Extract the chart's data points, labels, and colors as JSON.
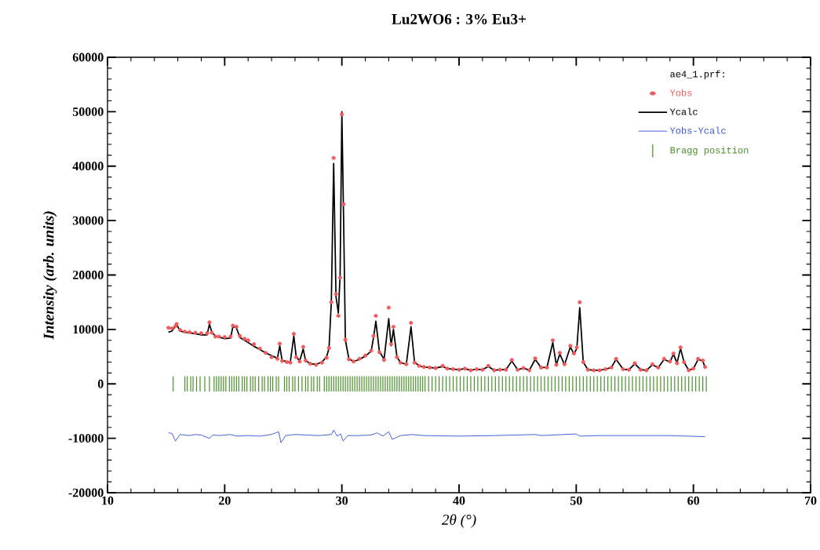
{
  "chart_data": {
    "type": "line",
    "title": "Lu2WO6 : 3% Eu3+",
    "xlabel": "2θ (°)",
    "ylabel": "Intensity (arb. units)",
    "legend_title": "ae4_1.prf:",
    "legend": "top right",
    "xlim": [
      10,
      70
    ],
    "ylim": [
      -20000,
      60000
    ],
    "xticks": [
      10,
      20,
      30,
      40,
      50,
      60,
      70
    ],
    "yticks": [
      -20000,
      -10000,
      0,
      10000,
      20000,
      30000,
      40000,
      50000,
      60000
    ],
    "x": [
      15.2,
      15.5,
      15.8,
      15.9,
      16.2,
      16.6,
      17,
      17.5,
      18,
      18.5,
      18.7,
      18.9,
      19.2,
      19.5,
      20,
      20.5,
      20.7,
      21,
      21.3,
      21.7,
      22,
      22.5,
      23,
      23.5,
      24,
      24.5,
      24.7,
      24.9,
      25.3,
      25.6,
      25.9,
      26.1,
      26.4,
      26.7,
      26.9,
      27.3,
      27.8,
      28.3,
      28.7,
      28.9,
      29.1,
      29.3,
      29.5,
      29.7,
      29.85,
      30,
      30.15,
      30.3,
      30.6,
      31,
      31.5,
      32,
      32.5,
      32.7,
      32.9,
      33.2,
      33.6,
      34,
      34.2,
      34.4,
      34.7,
      35,
      35.5,
      35.9,
      36.2,
      36.6,
      37,
      37.5,
      38,
      38.6,
      39,
      39.5,
      40,
      40.5,
      41,
      41.5,
      42,
      42.5,
      43,
      43.5,
      44,
      44.5,
      45,
      45.5,
      46,
      46.5,
      47,
      47.5,
      48,
      48.3,
      48.6,
      49,
      49.5,
      49.8,
      50.05,
      50.3,
      50.6,
      51,
      51.5,
      52,
      52.5,
      53,
      53.4,
      54,
      54.5,
      55,
      55.5,
      56,
      56.5,
      57,
      57.5,
      58,
      58.3,
      58.6,
      58.9,
      59.2,
      59.6,
      60,
      60.4,
      60.8,
      61
    ],
    "series": [
      {
        "name": "Yobs",
        "type": "scatter",
        "marker": "circle",
        "color": "#f05a5a",
        "values": [
          10300,
          10200,
          10600,
          11000,
          9900,
          9600,
          9500,
          9400,
          9300,
          9300,
          11300,
          9400,
          8700,
          8700,
          8600,
          8700,
          10700,
          10500,
          8800,
          8300,
          8000,
          7300,
          6500,
          5700,
          4900,
          4600,
          7400,
          4200,
          4000,
          3900,
          9200,
          4900,
          4100,
          6800,
          4300,
          3700,
          3500,
          3900,
          4800,
          6600,
          15000,
          41500,
          16500,
          12500,
          19500,
          49500,
          33000,
          8100,
          4500,
          4100,
          4600,
          5200,
          6100,
          8800,
          12500,
          5800,
          4400,
          14000,
          7300,
          10500,
          4900,
          3900,
          3600,
          11200,
          3900,
          3300,
          3100,
          3000,
          2900,
          3300,
          2800,
          2700,
          2600,
          2800,
          2500,
          2700,
          2600,
          3300,
          2500,
          2600,
          2600,
          4400,
          2600,
          2900,
          2500,
          4700,
          3000,
          3000,
          8000,
          3500,
          5700,
          3600,
          7000,
          5600,
          6700,
          15000,
          4000,
          2600,
          2500,
          2500,
          2700,
          3000,
          4600,
          2700,
          2600,
          3800,
          2600,
          2500,
          3600,
          3000,
          4600,
          4100,
          5600,
          3800,
          6700,
          4000,
          2500,
          2800,
          4600,
          4300,
          3100
        ]
      },
      {
        "name": "Ycalc",
        "color": "#000000",
        "values": [
          9500,
          9700,
          10600,
          10900,
          9700,
          9500,
          9400,
          9200,
          9000,
          9000,
          11000,
          9500,
          8800,
          8600,
          8300,
          8400,
          10500,
          10300,
          8500,
          8000,
          7600,
          6900,
          6300,
          5700,
          5200,
          4700,
          7000,
          4300,
          4100,
          4000,
          8800,
          5000,
          4200,
          6400,
          4300,
          3700,
          3600,
          4000,
          5000,
          6500,
          15000,
          40500,
          16000,
          13000,
          20000,
          50000,
          30000,
          8000,
          4600,
          4100,
          4500,
          5100,
          6000,
          8500,
          11500,
          6000,
          4500,
          12000,
          7000,
          10000,
          5000,
          3900,
          3600,
          10500,
          4000,
          3300,
          3100,
          3000,
          2900,
          3200,
          2800,
          2700,
          2600,
          2800,
          2500,
          2700,
          2600,
          3200,
          2500,
          2600,
          2600,
          4200,
          2600,
          2900,
          2500,
          4500,
          3000,
          3000,
          7600,
          3500,
          5500,
          3500,
          6800,
          5500,
          6500,
          14000,
          4000,
          2600,
          2500,
          2500,
          2700,
          3000,
          4500,
          2700,
          2600,
          3700,
          2600,
          2500,
          3500,
          3000,
          4500,
          4000,
          5500,
          3800,
          6500,
          4000,
          2500,
          2800,
          4500,
          4200,
          3000
        ]
      },
      {
        "name": "Yobs-Ycalc",
        "color": "#3a55d8",
        "x": [
          15.2,
          15.5,
          15.8,
          16.2,
          17,
          17.5,
          18,
          18.7,
          19,
          19.5,
          20.5,
          21,
          22,
          23,
          24,
          24.6,
          24.8,
          25.2,
          26,
          27,
          28,
          29.1,
          29.3,
          29.6,
          29.9,
          30.1,
          30.5,
          31.5,
          32.5,
          33,
          33.5,
          34,
          34.3,
          35,
          36,
          37,
          40,
          43,
          46.5,
          47,
          50,
          50.3,
          52,
          55,
          58,
          61
        ],
        "values": [
          -9000,
          -9100,
          -10500,
          -9300,
          -9500,
          -9300,
          -9400,
          -10000,
          -9400,
          -9500,
          -9300,
          -9600,
          -9500,
          -9600,
          -9300,
          -8800,
          -10800,
          -9500,
          -9300,
          -9400,
          -9500,
          -9300,
          -8500,
          -9600,
          -9200,
          -10500,
          -9500,
          -9500,
          -9400,
          -9000,
          -9600,
          -8800,
          -10200,
          -9500,
          -9300,
          -9500,
          -9600,
          -9500,
          -9300,
          -9500,
          -9200,
          -9600,
          -9500,
          -9500,
          -9500,
          -9700
        ]
      },
      {
        "name": "Bragg position",
        "type": "bar",
        "color": "#4a8f2a",
        "x": [
          15.6,
          16.6,
          16.8,
          17.1,
          17.3,
          17.6,
          17.9,
          18.3,
          18.7,
          19.1,
          19.3,
          19.5,
          19.7,
          19.9,
          20.1,
          20.4,
          20.6,
          20.8,
          21.0,
          21.2,
          21.5,
          21.7,
          21.9,
          22.2,
          22.4,
          22.6,
          22.9,
          23.2,
          23.4,
          23.7,
          23.9,
          24.1,
          24.4,
          24.6,
          25.1,
          25.3,
          25.5,
          25.8,
          26.0,
          26.3,
          26.6,
          26.9,
          27.1,
          27.4,
          27.6,
          27.9,
          28.1,
          28.5,
          28.7,
          28.9,
          29.1,
          29.3,
          29.5,
          29.7,
          29.9,
          30.1,
          30.3,
          30.5,
          30.7,
          30.9,
          31.1,
          31.3,
          31.5,
          31.7,
          31.9,
          32.1,
          32.3,
          32.5,
          32.7,
          32.9,
          33.1,
          33.3,
          33.5,
          33.7,
          33.9,
          34.1,
          34.3,
          34.5,
          34.7,
          34.9,
          35.1,
          35.3,
          35.5,
          35.7,
          35.9,
          36.1,
          36.3,
          36.5,
          36.7,
          36.9,
          37.1,
          37.4,
          37.7,
          38.0,
          38.3,
          38.6,
          38.9,
          39.2,
          39.5,
          39.8,
          40.1,
          40.4,
          40.7,
          41.0,
          41.3,
          41.6,
          41.9,
          42.2,
          42.5,
          42.8,
          43.1,
          43.4,
          43.7,
          44.0,
          44.3,
          44.6,
          44.9,
          45.2,
          45.5,
          45.8,
          46.1,
          46.4,
          46.7,
          47.0,
          47.3,
          47.6,
          47.9,
          48.2,
          48.5,
          48.8,
          49.1,
          49.4,
          49.7,
          50.0,
          50.3,
          50.6,
          50.9,
          51.2,
          51.5,
          51.8,
          52.1,
          52.4,
          52.7,
          53.0,
          53.3,
          53.6,
          53.9,
          54.2,
          54.5,
          54.8,
          55.1,
          55.4,
          55.7,
          56.0,
          56.3,
          56.6,
          56.9,
          57.2,
          57.5,
          57.8,
          58.1,
          58.4,
          58.7,
          59.0,
          59.3,
          59.6,
          59.9,
          60.2,
          60.5,
          60.8,
          61.1
        ],
        "base": [
          -1400,
          -1400,
          -1400,
          -1400,
          -1400,
          -1400,
          -1400,
          -1400,
          -1400,
          -1400,
          -1400,
          -1400,
          -1400,
          -1400,
          -1400,
          -1400,
          -1400,
          -1400,
          -1400,
          -1400,
          -1400,
          -1400,
          -1400,
          -1400,
          -1400,
          -1400,
          -1400,
          -1400,
          -1400,
          -1400,
          -1400,
          -1400,
          -1400,
          -1400,
          -1400,
          -1400,
          -1400,
          -1400,
          -1400,
          -1400,
          -1400,
          -1400,
          -1400,
          -1400,
          -1400,
          -1400,
          -1400,
          -1400,
          -1400,
          -1400,
          -1400,
          -1400,
          -1400,
          -1400,
          -1400,
          -1400,
          -1400,
          -1400,
          -1400,
          -1400,
          -1400,
          -1400,
          -1400,
          -1400,
          -1400,
          -1400,
          -1400,
          -1400,
          -1400,
          -1400,
          -1400,
          -1400,
          -1400,
          -1400,
          -1400,
          -1400,
          -1400,
          -1400,
          -1400,
          -1400,
          -1400,
          -1400,
          -1400,
          -1400,
          -1400,
          -1400,
          -1400,
          -1400,
          -1400,
          -1400,
          -1400,
          -1400,
          -1400,
          -1400,
          -1400,
          -1400,
          -1400,
          -1400,
          -1400,
          -1400,
          -1400,
          -1400,
          -1400,
          -1400,
          -1400,
          -1400,
          -1400,
          -1400,
          -1400,
          -1400,
          -1400,
          -1400,
          -1400,
          -1400,
          -1400,
          -1400,
          -1400,
          -1400,
          -1400,
          -1400,
          -1400,
          -1400,
          -1400,
          -1400,
          -1400,
          -1400,
          -1400,
          -1400,
          -1400,
          -1400,
          -1400,
          -1400,
          -1400,
          -1400,
          -1400,
          -1400,
          -1400,
          -1400,
          -1400,
          -1400,
          -1400,
          -1400,
          -1400,
          -1400,
          -1400,
          -1400,
          -1400,
          -1400,
          -1400,
          -1400,
          -1400,
          -1400,
          -1400,
          -1400,
          -1400,
          -1400,
          -1400,
          -1400,
          -1400,
          -1400,
          -1400,
          -1400,
          -1400,
          -1400,
          -1400,
          -1400,
          -1400,
          -1400,
          -1400,
          -1400,
          -1400
        ],
        "values": [
          2800,
          2800,
          2800,
          2800,
          2800,
          2800,
          2800,
          2800,
          2800,
          2800,
          2800,
          2800,
          2800,
          2800,
          2800,
          2800,
          2800,
          2800,
          2800,
          2800,
          2800,
          2800,
          2800,
          2800,
          2800,
          2800,
          2800,
          2800,
          2800,
          2800,
          2800,
          2800,
          2800,
          2800,
          2800,
          2800,
          2800,
          2800,
          2800,
          2800,
          2800,
          2800,
          2800,
          2800,
          2800,
          2800,
          2800,
          2800,
          2800,
          2800,
          2800,
          2800,
          2800,
          2800,
          2800,
          2800,
          2800,
          2800,
          2800,
          2800,
          2800,
          2800,
          2800,
          2800,
          2800,
          2800,
          2800,
          2800,
          2800,
          2800,
          2800,
          2800,
          2800,
          2800,
          2800,
          2800,
          2800,
          2800,
          2800,
          2800,
          2800,
          2800,
          2800,
          2800,
          2800,
          2800,
          2800,
          2800,
          2800,
          2800,
          2800,
          2800,
          2800,
          2800,
          2800,
          2800,
          2800,
          2800,
          2800,
          2800,
          2800,
          2800,
          2800,
          2800,
          2800,
          2800,
          2800,
          2800,
          2800,
          2800,
          2800,
          2800,
          2800,
          2800,
          2800,
          2800,
          2800,
          2800,
          2800,
          2800,
          2800,
          2800,
          2800,
          2800,
          2800,
          2800,
          2800,
          2800,
          2800,
          2800,
          2800,
          2800,
          2800,
          2800,
          2800,
          2800,
          2800,
          2800,
          2800,
          2800,
          2800,
          2800,
          2800,
          2800,
          2800,
          2800,
          2800,
          2800,
          2800,
          2800,
          2800,
          2800,
          2800,
          2800,
          2800,
          2800,
          2800,
          2800,
          2800,
          2800,
          2800,
          2800,
          2800,
          2800,
          2800,
          2800,
          2800,
          2800,
          2800,
          2800,
          2800
        ]
      }
    ]
  }
}
